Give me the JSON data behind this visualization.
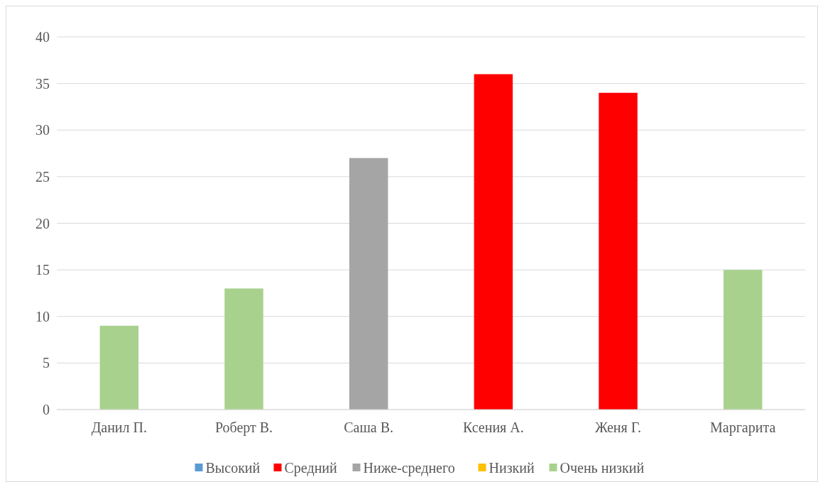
{
  "chart_data": {
    "type": "bar",
    "categories": [
      "Данил П.",
      "Роберт В.",
      "Саша В.",
      "Ксения А.",
      "Женя Г.",
      "Маргарита"
    ],
    "series": [
      {
        "name": "Высокий",
        "color": "#5b9bd5",
        "values": [
          null,
          null,
          null,
          null,
          null,
          null
        ]
      },
      {
        "name": "Средний",
        "color": "#ff0000",
        "values": [
          null,
          null,
          null,
          36,
          34,
          null
        ]
      },
      {
        "name": "Ниже-среднего",
        "color": "#a5a5a5",
        "values": [
          null,
          null,
          27,
          null,
          null,
          null
        ]
      },
      {
        "name": "Низкий",
        "color": "#ffc000",
        "values": [
          null,
          null,
          null,
          null,
          null,
          null
        ]
      },
      {
        "name": "Очень низкий",
        "color": "#a9d18e",
        "values": [
          9,
          13,
          null,
          null,
          null,
          15
        ]
      }
    ],
    "ylim": [
      0,
      40
    ],
    "yticks": [
      0,
      5,
      10,
      15,
      20,
      25,
      30,
      35,
      40
    ],
    "grid": "y",
    "legend": "bottom"
  }
}
